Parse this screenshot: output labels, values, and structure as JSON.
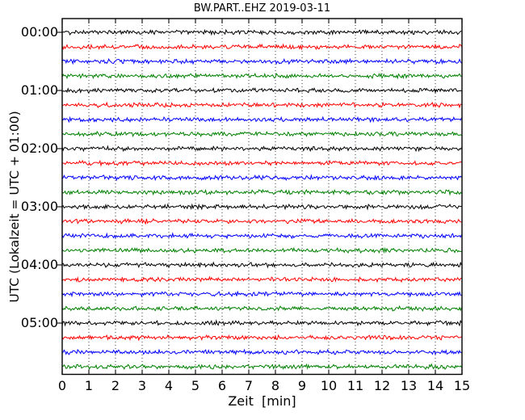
{
  "chart_data": {
    "type": "line",
    "subtype": "seismogram-dayplot",
    "title": "BW.PART..EHZ 2019-03-11",
    "xlabel": "Zeit  [min]",
    "ylabel": "UTC (Lokalzeit = UTC + 01:00)",
    "xlim": [
      0,
      15
    ],
    "x_ticks": [
      0,
      1,
      2,
      3,
      4,
      5,
      6,
      7,
      8,
      9,
      10,
      11,
      12,
      13,
      14,
      15
    ],
    "y_tick_labels": [
      "00:00",
      "01:00",
      "02:00",
      "03:00",
      "04:00",
      "05:00"
    ],
    "grid": {
      "vertical": "dotted line every minute",
      "horizontal": "none"
    },
    "background_color": "#ffffff",
    "frame_color": "#000000",
    "color_cycle": [
      "#000000",
      "#ff0000",
      "#0000ff",
      "#008000"
    ],
    "interval_minutes": 15,
    "note": "24 trace lines, one per 15-minute interval, all showing flat background noise with no visible events",
    "traces": [
      {
        "start_utc": "00:00",
        "color": "#000000",
        "signal": "flat noise"
      },
      {
        "start_utc": "00:15",
        "color": "#ff0000",
        "signal": "flat noise"
      },
      {
        "start_utc": "00:30",
        "color": "#0000ff",
        "signal": "flat noise"
      },
      {
        "start_utc": "00:45",
        "color": "#008000",
        "signal": "flat noise"
      },
      {
        "start_utc": "01:00",
        "color": "#000000",
        "signal": "flat noise"
      },
      {
        "start_utc": "01:15",
        "color": "#ff0000",
        "signal": "flat noise"
      },
      {
        "start_utc": "01:30",
        "color": "#0000ff",
        "signal": "flat noise"
      },
      {
        "start_utc": "01:45",
        "color": "#008000",
        "signal": "flat noise"
      },
      {
        "start_utc": "02:00",
        "color": "#000000",
        "signal": "flat noise"
      },
      {
        "start_utc": "02:15",
        "color": "#ff0000",
        "signal": "flat noise"
      },
      {
        "start_utc": "02:30",
        "color": "#0000ff",
        "signal": "flat noise"
      },
      {
        "start_utc": "02:45",
        "color": "#008000",
        "signal": "flat noise"
      },
      {
        "start_utc": "03:00",
        "color": "#000000",
        "signal": "flat noise"
      },
      {
        "start_utc": "03:15",
        "color": "#ff0000",
        "signal": "flat noise"
      },
      {
        "start_utc": "03:30",
        "color": "#0000ff",
        "signal": "flat noise"
      },
      {
        "start_utc": "03:45",
        "color": "#008000",
        "signal": "flat noise"
      },
      {
        "start_utc": "04:00",
        "color": "#000000",
        "signal": "flat noise"
      },
      {
        "start_utc": "04:15",
        "color": "#ff0000",
        "signal": "flat noise"
      },
      {
        "start_utc": "04:30",
        "color": "#0000ff",
        "signal": "flat noise"
      },
      {
        "start_utc": "04:45",
        "color": "#008000",
        "signal": "flat noise"
      },
      {
        "start_utc": "05:00",
        "color": "#000000",
        "signal": "flat noise"
      },
      {
        "start_utc": "05:15",
        "color": "#ff0000",
        "signal": "flat noise"
      },
      {
        "start_utc": "05:30",
        "color": "#0000ff",
        "signal": "flat noise"
      },
      {
        "start_utc": "05:45",
        "color": "#008000",
        "signal": "flat noise"
      }
    ]
  }
}
